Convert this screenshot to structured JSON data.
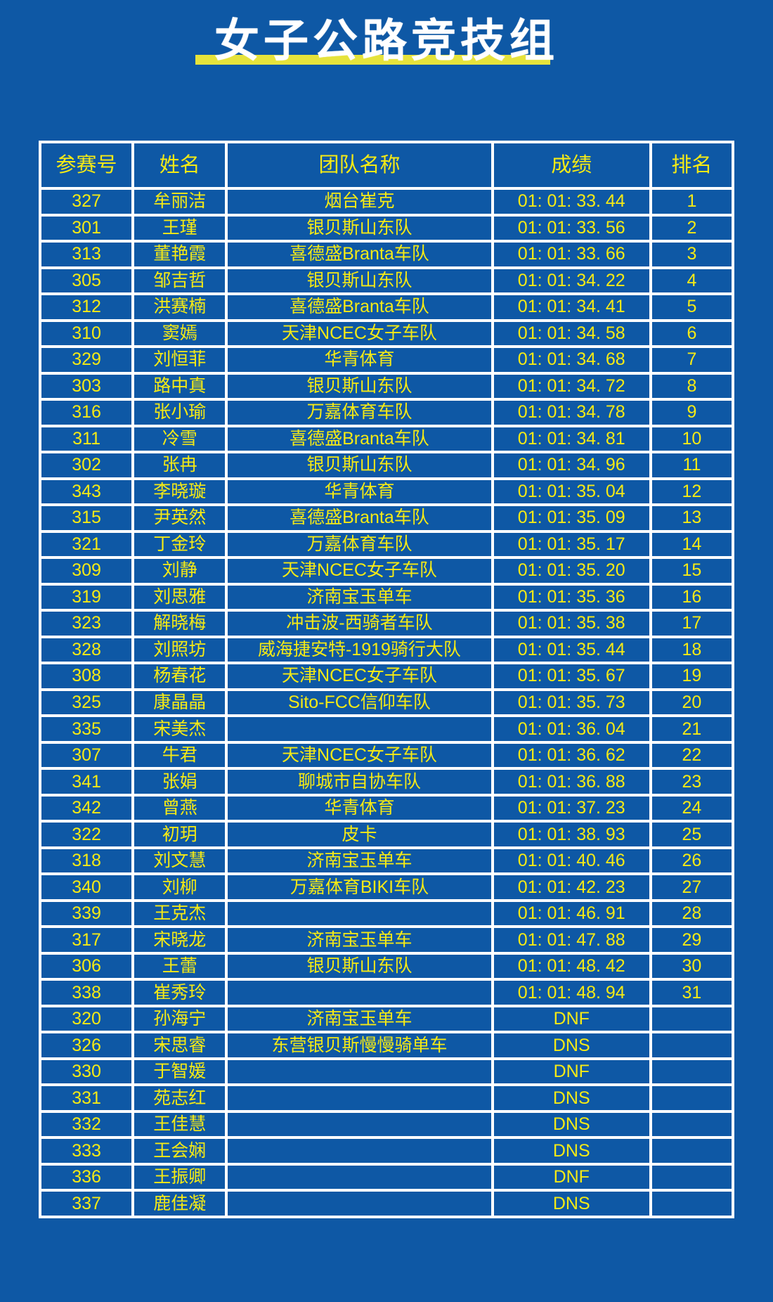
{
  "title": "女子公路竞技组",
  "colors": {
    "background": "#0e58a5",
    "text_yellow": "#f5ea15",
    "title_underline_yellow": "#e6e33b",
    "grid_line_white": "#ffffff",
    "title_white": "#ffffff"
  },
  "table": {
    "headers": [
      "参赛号",
      "姓名",
      "团队名称",
      "成绩",
      "排名"
    ],
    "rows": [
      [
        "327",
        "牟丽洁",
        "烟台崔克",
        "01: 01: 33. 44",
        "1"
      ],
      [
        "301",
        "王瑾",
        "银贝斯山东队",
        "01: 01: 33. 56",
        "2"
      ],
      [
        "313",
        "董艳霞",
        "喜德盛Branta车队",
        "01: 01: 33. 66",
        "3"
      ],
      [
        "305",
        "邹吉哲",
        "银贝斯山东队",
        "01: 01: 34. 22",
        "4"
      ],
      [
        "312",
        "洪赛楠",
        "喜德盛Branta车队",
        "01: 01: 34. 41",
        "5"
      ],
      [
        "310",
        "窦嫣",
        "天津NCEC女子车队",
        "01: 01: 34. 58",
        "6"
      ],
      [
        "329",
        "刘恒菲",
        "华青体育",
        "01: 01: 34. 68",
        "7"
      ],
      [
        "303",
        "路中真",
        "银贝斯山东队",
        "01: 01: 34. 72",
        "8"
      ],
      [
        "316",
        "张小瑜",
        "万嘉体育车队",
        "01: 01: 34. 78",
        "9"
      ],
      [
        "311",
        "冷雪",
        "喜德盛Branta车队",
        "01: 01: 34. 81",
        "10"
      ],
      [
        "302",
        "张冉",
        "银贝斯山东队",
        "01: 01: 34. 96",
        "11"
      ],
      [
        "343",
        "李晓璇",
        "华青体育",
        "01: 01: 35. 04",
        "12"
      ],
      [
        "315",
        "尹英然",
        "喜德盛Branta车队",
        "01: 01: 35. 09",
        "13"
      ],
      [
        "321",
        "丁金玲",
        "万嘉体育车队",
        "01: 01: 35. 17",
        "14"
      ],
      [
        "309",
        "刘静",
        "天津NCEC女子车队",
        "01: 01: 35. 20",
        "15"
      ],
      [
        "319",
        "刘思雅",
        "济南宝玉单车",
        "01: 01: 35. 36",
        "16"
      ],
      [
        "323",
        "解晓梅",
        "冲击波-西骑者车队",
        "01: 01: 35. 38",
        "17"
      ],
      [
        "328",
        "刘照坊",
        "威海捷安特-1919骑行大队",
        "01: 01: 35. 44",
        "18"
      ],
      [
        "308",
        "杨春花",
        "天津NCEC女子车队",
        "01: 01: 35. 67",
        "19"
      ],
      [
        "325",
        "康晶晶",
        "Sito-FCC信仰车队",
        "01: 01: 35. 73",
        "20"
      ],
      [
        "335",
        "宋美杰",
        "",
        "01: 01: 36. 04",
        "21"
      ],
      [
        "307",
        "牛君",
        "天津NCEC女子车队",
        "01: 01: 36. 62",
        "22"
      ],
      [
        "341",
        "张娟",
        "聊城市自协车队",
        "01: 01: 36. 88",
        "23"
      ],
      [
        "342",
        "曾燕",
        "华青体育",
        "01: 01: 37. 23",
        "24"
      ],
      [
        "322",
        "初玥",
        "皮卡",
        "01: 01: 38. 93",
        "25"
      ],
      [
        "318",
        "刘文慧",
        "济南宝玉单车",
        "01: 01: 40. 46",
        "26"
      ],
      [
        "340",
        "刘柳",
        "万嘉体育BIKI车队",
        "01: 01: 42. 23",
        "27"
      ],
      [
        "339",
        "王克杰",
        "",
        "01: 01: 46. 91",
        "28"
      ],
      [
        "317",
        "宋晓龙",
        "济南宝玉单车",
        "01: 01: 47. 88",
        "29"
      ],
      [
        "306",
        "王蕾",
        "银贝斯山东队",
        "01: 01: 48. 42",
        "30"
      ],
      [
        "338",
        "崔秀玲",
        "",
        "01: 01: 48. 94",
        "31"
      ],
      [
        "320",
        "孙海宁",
        "济南宝玉单车",
        "DNF",
        ""
      ],
      [
        "326",
        "宋思睿",
        "东营银贝斯慢慢骑单车",
        "DNS",
        ""
      ],
      [
        "330",
        "于智媛",
        "",
        "DNF",
        ""
      ],
      [
        "331",
        "苑志红",
        "",
        "DNS",
        ""
      ],
      [
        "332",
        "王佳慧",
        "",
        "DNS",
        ""
      ],
      [
        "333",
        "王会娴",
        "",
        "DNS",
        ""
      ],
      [
        "336",
        "王振卿",
        "",
        "DNF",
        ""
      ],
      [
        "337",
        "鹿佳凝",
        "",
        "DNS",
        ""
      ]
    ]
  }
}
